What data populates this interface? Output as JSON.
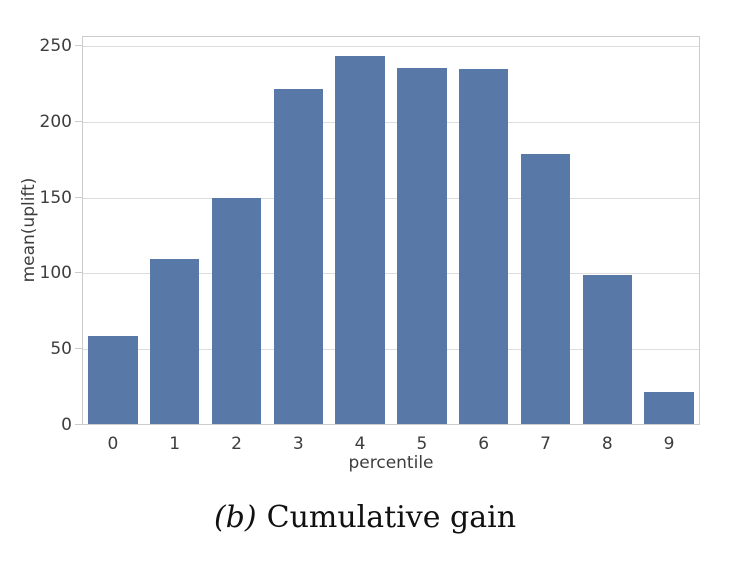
{
  "figure": {
    "caption": {
      "open_paren": "(",
      "letter": "b",
      "close_paren": ")",
      "text": "Cumulative gain"
    }
  },
  "chart_data": {
    "type": "bar",
    "categories": [
      "0",
      "1",
      "2",
      "3",
      "4",
      "5",
      "6",
      "7",
      "8",
      "9"
    ],
    "values": [
      58,
      109,
      149,
      221,
      243,
      235,
      234,
      178,
      98,
      21
    ],
    "title": "",
    "xlabel": "percentile",
    "ylabel": "mean(uplift)",
    "yticks": [
      0,
      50,
      100,
      150,
      200,
      250
    ],
    "ylim": [
      0,
      250
    ],
    "grid": true,
    "legend_position": "none",
    "bar_fill_ratio": 0.8,
    "colors": {
      "bar": "#5878a8",
      "grid": "#dddddd",
      "axis": "#cccccc",
      "tick_label": "#3d3d3d",
      "caption": "#111111",
      "background": "#ffffff"
    }
  }
}
